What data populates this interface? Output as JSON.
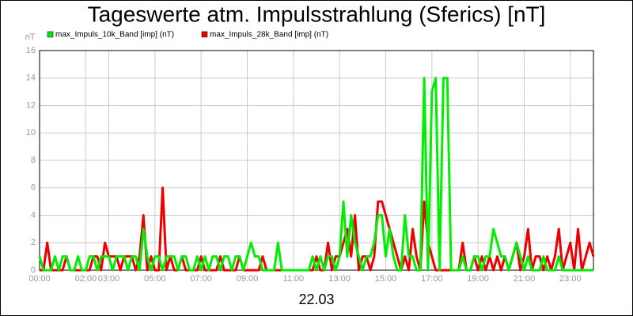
{
  "chart_data": {
    "type": "line",
    "title": "Tageswerte atm. Impulsstrahlung (Sferics) [nT]",
    "ylabel": "nT",
    "xlabel": "22.03",
    "xlim": [
      0,
      1440
    ],
    "xticks": [
      {
        "value": 0,
        "label": "00:00"
      },
      {
        "value": 120,
        "label": "02:00"
      },
      {
        "value": 180,
        "label": "03:00"
      },
      {
        "value": 300,
        "label": "05:00"
      },
      {
        "value": 420,
        "label": "07:00"
      },
      {
        "value": 540,
        "label": "09:00"
      },
      {
        "value": 660,
        "label": "11:00"
      },
      {
        "value": 780,
        "label": "13:00"
      },
      {
        "value": 900,
        "label": "15:00"
      },
      {
        "value": 1020,
        "label": "17:00"
      },
      {
        "value": 1140,
        "label": "19:00"
      },
      {
        "value": 1260,
        "label": "21:00"
      },
      {
        "value": 1380,
        "label": "23:00"
      }
    ],
    "ylim": [
      0,
      16
    ],
    "yticks": [
      0,
      2,
      4,
      6,
      8,
      10,
      12,
      14,
      16
    ],
    "grid": true,
    "x": [
      0,
      10,
      20,
      30,
      40,
      50,
      60,
      70,
      80,
      90,
      100,
      110,
      120,
      130,
      140,
      150,
      160,
      170,
      180,
      190,
      200,
      210,
      220,
      230,
      240,
      250,
      260,
      270,
      280,
      290,
      300,
      310,
      320,
      330,
      340,
      350,
      360,
      370,
      380,
      390,
      400,
      410,
      420,
      430,
      440,
      450,
      460,
      470,
      480,
      490,
      500,
      510,
      520,
      530,
      540,
      550,
      560,
      570,
      580,
      590,
      600,
      610,
      620,
      630,
      640,
      650,
      660,
      670,
      680,
      690,
      700,
      710,
      720,
      730,
      740,
      750,
      760,
      770,
      780,
      790,
      800,
      810,
      820,
      830,
      840,
      850,
      860,
      870,
      880,
      890,
      900,
      910,
      920,
      930,
      940,
      950,
      960,
      970,
      980,
      990,
      1000,
      1010,
      1020,
      1030,
      1040,
      1050,
      1060,
      1070,
      1080,
      1090,
      1100,
      1110,
      1120,
      1130,
      1140,
      1150,
      1160,
      1170,
      1180,
      1190,
      1200,
      1210,
      1220,
      1230,
      1240,
      1250,
      1260,
      1270,
      1280,
      1290,
      1300,
      1310,
      1320,
      1330,
      1340,
      1350,
      1360,
      1370,
      1380,
      1390,
      1400,
      1410,
      1420,
      1430,
      1440
    ],
    "series": [
      {
        "name": "max_Impuls_10k_Band [imp] (nT)",
        "color": "#00ee00",
        "values": [
          1,
          0,
          0,
          0,
          1,
          0,
          1,
          1,
          0,
          0,
          1,
          0,
          0,
          1,
          1,
          0,
          1,
          1,
          1,
          0,
          1,
          1,
          1,
          0,
          1,
          1,
          0,
          3,
          1,
          0,
          1,
          1,
          0,
          1,
          1,
          1,
          0,
          1,
          1,
          0,
          0,
          1,
          0,
          1,
          0,
          1,
          1,
          0,
          1,
          1,
          0,
          1,
          1,
          0,
          1,
          2,
          1,
          1,
          0,
          0,
          0,
          0,
          2,
          0,
          0,
          0,
          0,
          0,
          0,
          0,
          0,
          1,
          0,
          1,
          0,
          1,
          1,
          0,
          1,
          5,
          1,
          4,
          2,
          1,
          0,
          1,
          1,
          2,
          4,
          4,
          1,
          3,
          1,
          0,
          0,
          4,
          1,
          1,
          0,
          0,
          14,
          0,
          13,
          14,
          0,
          14,
          14,
          0,
          0,
          0,
          1,
          0,
          0,
          1,
          1,
          0,
          1,
          1,
          3,
          2,
          1,
          1,
          0,
          1,
          2,
          1,
          0,
          1,
          0,
          0,
          0,
          1,
          0,
          0,
          0,
          1,
          0,
          0,
          0,
          0,
          0,
          0,
          0,
          0,
          0
        ]
      },
      {
        "name": "max_Impuls_28k_Band [imp] (nT)",
        "color": "#ee0000",
        "values": [
          0,
          0,
          2,
          0,
          0,
          0,
          0,
          1,
          0,
          0,
          0,
          0,
          0,
          0,
          1,
          1,
          0,
          2,
          1,
          1,
          1,
          0,
          1,
          1,
          1,
          0,
          1,
          4,
          0,
          1,
          0,
          0,
          6,
          0,
          1,
          0,
          0,
          1,
          0,
          0,
          0,
          0,
          1,
          0,
          0,
          0,
          0,
          1,
          0,
          0,
          0,
          0,
          1,
          0,
          0,
          0,
          0,
          0,
          1,
          0,
          0,
          0,
          0,
          0,
          0,
          0,
          0,
          0,
          0,
          0,
          0,
          0,
          1,
          0,
          0,
          2,
          0,
          1,
          1,
          2,
          3,
          1,
          4,
          0,
          1,
          1,
          0,
          1,
          5,
          5,
          4,
          3,
          2,
          1,
          0,
          1,
          0,
          3,
          1,
          0,
          5,
          2,
          1,
          0,
          0,
          0,
          0,
          0,
          0,
          0,
          2,
          0,
          0,
          1,
          0,
          1,
          0,
          1,
          0,
          1,
          0,
          1,
          0,
          1,
          2,
          0,
          1,
          3,
          0,
          1,
          1,
          0,
          1,
          0,
          1,
          3,
          0,
          1,
          2,
          0,
          3,
          0,
          1,
          2,
          1
        ]
      }
    ]
  }
}
